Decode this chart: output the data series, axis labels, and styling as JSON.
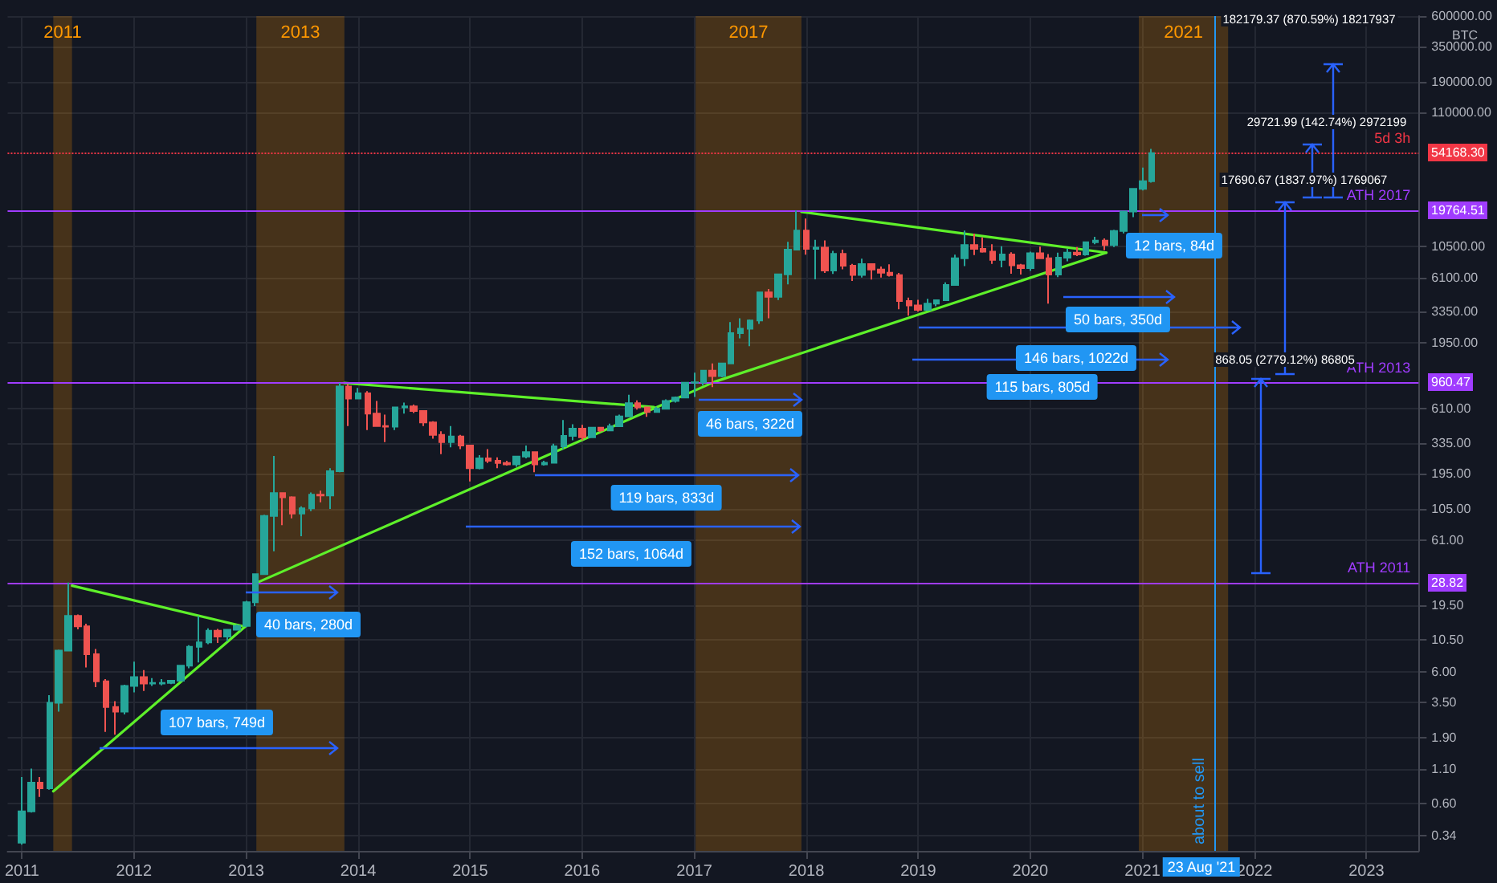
{
  "chart_data": {
    "type": "candlestick",
    "ylabel": "BTC",
    "x": [
      "2011-01",
      "2011-02",
      "2011-03",
      "2011-04",
      "2011-05",
      "2011-06",
      "2011-07",
      "2011-08",
      "2011-09",
      "2011-10",
      "2011-11",
      "2011-12",
      "2012-01",
      "2012-02",
      "2012-03",
      "2012-04",
      "2012-05",
      "2012-06",
      "2012-07",
      "2012-08",
      "2012-09",
      "2012-10",
      "2012-11",
      "2012-12",
      "2013-01",
      "2013-02",
      "2013-03",
      "2013-04",
      "2013-05",
      "2013-06",
      "2013-07",
      "2013-08",
      "2013-09",
      "2013-10",
      "2013-11",
      "2013-12",
      "2014-01",
      "2014-02",
      "2014-03",
      "2014-04",
      "2014-05",
      "2014-06",
      "2014-07",
      "2014-08",
      "2014-09",
      "2014-10",
      "2014-11",
      "2014-12",
      "2015-01",
      "2015-02",
      "2015-03",
      "2015-04",
      "2015-05",
      "2015-06",
      "2015-07",
      "2015-08",
      "2015-09",
      "2015-10",
      "2015-11",
      "2015-12",
      "2016-01",
      "2016-02",
      "2016-03",
      "2016-04",
      "2016-05",
      "2016-06",
      "2016-07",
      "2016-08",
      "2016-09",
      "2016-10",
      "2016-11",
      "2016-12",
      "2017-01",
      "2017-02",
      "2017-03",
      "2017-04",
      "2017-05",
      "2017-06",
      "2017-07",
      "2017-08",
      "2017-09",
      "2017-10",
      "2017-11",
      "2017-12",
      "2018-01",
      "2018-02",
      "2018-03",
      "2018-04",
      "2018-05",
      "2018-06",
      "2018-07",
      "2018-08",
      "2018-09",
      "2018-10",
      "2018-11",
      "2018-12",
      "2019-01",
      "2019-02",
      "2019-03",
      "2019-04",
      "2019-05",
      "2019-06",
      "2019-07",
      "2019-08",
      "2019-09",
      "2019-10",
      "2019-11",
      "2019-12",
      "2020-01",
      "2020-02",
      "2020-03",
      "2020-04",
      "2020-05",
      "2020-06",
      "2020-07",
      "2020-08",
      "2020-09",
      "2020-10",
      "2020-11",
      "2020-12",
      "2021-01",
      "2021-02"
    ],
    "ohlc": [
      [
        0.3,
        0.95,
        0.29,
        0.52
      ],
      [
        0.52,
        1.1,
        0.51,
        0.86
      ],
      [
        0.86,
        0.95,
        0.67,
        0.78
      ],
      [
        0.78,
        4.0,
        0.76,
        3.5
      ],
      [
        3.5,
        8.9,
        3.0,
        8.74
      ],
      [
        8.74,
        28.82,
        8.7,
        16.1
      ],
      [
        16.1,
        16.5,
        12.7,
        13.4
      ],
      [
        13.4,
        14.0,
        6.5,
        8.2
      ],
      [
        8.2,
        9.0,
        4.6,
        5.1
      ],
      [
        5.1,
        5.3,
        2.1,
        3.25
      ],
      [
        3.25,
        3.6,
        2.0,
        3.0
      ],
      [
        3.0,
        4.8,
        2.85,
        4.7
      ],
      [
        4.7,
        7.2,
        4.2,
        5.5
      ],
      [
        5.5,
        6.2,
        4.3,
        4.9
      ],
      [
        4.9,
        5.4,
        4.7,
        4.95
      ],
      [
        4.9,
        5.3,
        4.75,
        4.95
      ],
      [
        4.95,
        5.2,
        4.85,
        5.15
      ],
      [
        5.15,
        6.7,
        5.1,
        6.7
      ],
      [
        6.7,
        9.6,
        6.4,
        9.35
      ],
      [
        9.35,
        16.0,
        7.1,
        10.1
      ],
      [
        10.1,
        12.9,
        9.8,
        12.4
      ],
      [
        12.4,
        12.8,
        10.0,
        11.2
      ],
      [
        11.2,
        12.7,
        10.3,
        12.6
      ],
      [
        12.6,
        13.8,
        12.5,
        13.5
      ],
      [
        13.5,
        20.9,
        13.2,
        20.4
      ],
      [
        20.4,
        33.4,
        19.1,
        33.4
      ],
      [
        33.4,
        95,
        33,
        93
      ],
      [
        93,
        266,
        50,
        139
      ],
      [
        139,
        140,
        79,
        129
      ],
      [
        129,
        131,
        89,
        97
      ],
      [
        97,
        110,
        65,
        106
      ],
      [
        106,
        140,
        101,
        135
      ],
      [
        135,
        145,
        118,
        133
      ],
      [
        133,
        215,
        105,
        204
      ],
      [
        204,
        960.47,
        200,
        900
      ],
      [
        900,
        940,
        450,
        730
      ],
      [
        730,
        880,
        730,
        800
      ],
      [
        800,
        830,
        420,
        560
      ],
      [
        560,
        700,
        450,
        450
      ],
      [
        450,
        550,
        340,
        445
      ],
      [
        445,
        630,
        420,
        625
      ],
      [
        625,
        680,
        560,
        635
      ],
      [
        635,
        655,
        565,
        585
      ],
      [
        585,
        595,
        450,
        480
      ],
      [
        480,
        490,
        360,
        385
      ],
      [
        385,
        410,
        275,
        340
      ],
      [
        340,
        450,
        310,
        375
      ],
      [
        375,
        385,
        300,
        320
      ],
      [
        320,
        320,
        170,
        215
      ],
      [
        215,
        270,
        210,
        255
      ],
      [
        255,
        300,
        235,
        245
      ],
      [
        245,
        260,
        215,
        235
      ],
      [
        235,
        245,
        225,
        230
      ],
      [
        230,
        265,
        220,
        263
      ],
      [
        263,
        320,
        255,
        285
      ],
      [
        285,
        285,
        200,
        230
      ],
      [
        230,
        245,
        225,
        236
      ],
      [
        236,
        330,
        235,
        315
      ],
      [
        315,
        500,
        300,
        378
      ],
      [
        378,
        465,
        350,
        430
      ],
      [
        430,
        460,
        350,
        370
      ],
      [
        370,
        440,
        365,
        437
      ],
      [
        437,
        440,
        405,
        416
      ],
      [
        416,
        470,
        415,
        448
      ],
      [
        448,
        550,
        445,
        532
      ],
      [
        532,
        780,
        525,
        673
      ],
      [
        673,
        705,
        600,
        624
      ],
      [
        624,
        626,
        530,
        575
      ],
      [
        575,
        630,
        570,
        609
      ],
      [
        609,
        720,
        605,
        700
      ],
      [
        700,
        755,
        680,
        742
      ],
      [
        742,
        975,
        740,
        963
      ],
      [
        963,
        1150,
        750,
        970
      ],
      [
        970,
        1200,
        915,
        1190
      ],
      [
        1190,
        1350,
        890,
        1080
      ],
      [
        1080,
        1350,
        1060,
        1350
      ],
      [
        1350,
        2790,
        1340,
        2300
      ],
      [
        2300,
        2980,
        2100,
        2480
      ],
      [
        2480,
        2920,
        1830,
        2870
      ],
      [
        2870,
        4750,
        2700,
        4700
      ],
      [
        4700,
        4980,
        2980,
        4340
      ],
      [
        4340,
        6450,
        4110,
        6450
      ],
      [
        6450,
        11400,
        5400,
        9950
      ],
      [
        9950,
        19764.51,
        9950,
        13900
      ],
      [
        13900,
        17200,
        9100,
        10100
      ],
      [
        10100,
        11800,
        5900,
        10300
      ],
      [
        10300,
        11700,
        6600,
        6900
      ],
      [
        6900,
        9750,
        6500,
        9240
      ],
      [
        9240,
        9950,
        7050,
        7500
      ],
      [
        7500,
        7750,
        5750,
        6390
      ],
      [
        6390,
        8500,
        6100,
        7730
      ],
      [
        7730,
        7750,
        5880,
        7030
      ],
      [
        7030,
        7400,
        6100,
        6630
      ],
      [
        6630,
        7680,
        6200,
        6370
      ],
      [
        6370,
        6600,
        3500,
        4040
      ],
      [
        4040,
        4280,
        3120,
        3740
      ],
      [
        3740,
        4120,
        3350,
        3460
      ],
      [
        3460,
        4200,
        3400,
        3850
      ],
      [
        3850,
        4130,
        3690,
        4100
      ],
      [
        4100,
        5600,
        4050,
        5350
      ],
      [
        5350,
        9100,
        5320,
        8550
      ],
      [
        8550,
        13900,
        7450,
        10800
      ],
      [
        10800,
        13200,
        9050,
        10100
      ],
      [
        10100,
        12350,
        9450,
        9600
      ],
      [
        9600,
        10950,
        7750,
        8300
      ],
      [
        8300,
        10550,
        7300,
        9150
      ],
      [
        9150,
        9500,
        6520,
        7550
      ],
      [
        7550,
        7750,
        6430,
        7200
      ],
      [
        7200,
        9600,
        6850,
        9350
      ],
      [
        9350,
        10500,
        8450,
        8550
      ],
      [
        8550,
        9200,
        3850,
        6420
      ],
      [
        6420,
        9450,
        6150,
        8630
      ],
      [
        8630,
        10080,
        8100,
        9450
      ],
      [
        9450,
        10400,
        8900,
        9140
      ],
      [
        9140,
        11450,
        8950,
        11350
      ],
      [
        11350,
        12480,
        10950,
        11650
      ],
      [
        11650,
        12100,
        9850,
        10780
      ],
      [
        10780,
        14100,
        10400,
        13800
      ],
      [
        13800,
        19500,
        13250,
        19400
      ],
      [
        19400,
        29300,
        17600,
        28950
      ],
      [
        28950,
        41950,
        28100,
        33100
      ],
      [
        33100,
        58350,
        32300,
        54168.3
      ]
    ],
    "series": [
      {
        "type": "line",
        "color": "#5ef02a",
        "x": [
          "2011-06-13",
          "2012-12-28"
        ],
        "values": [
          27.3,
          13.3
        ]
      },
      {
        "type": "line",
        "color": "#5ef02a",
        "x": [
          "2011-04-13",
          "2012-12-28"
        ],
        "values": [
          0.74,
          13.3
        ]
      },
      {
        "type": "line",
        "color": "#5ef02a",
        "x": [
          "2013-02-05",
          "2017-03-08",
          "2020-09-05"
        ],
        "values": [
          28.8,
          978,
          9430
        ]
      },
      {
        "type": "line",
        "color": "#5ef02a",
        "x": [
          "2013-11-17",
          "2016-08-22"
        ],
        "values": [
          957,
          627
        ]
      },
      {
        "type": "line",
        "color": "#5ef02a",
        "x": [
          "2017-12-16",
          "2020-09-05"
        ],
        "values": [
          19300,
          9430
        ]
      }
    ],
    "marker": "none",
    "xlim": [
      "2010-11-15",
      "2023-06-20"
    ],
    "xticks": [
      "2011",
      "2012",
      "2013",
      "2014",
      "2015",
      "2016",
      "2017",
      "2018",
      "2019",
      "2020",
      "2021",
      "2022",
      "2023"
    ],
    "ylim": [
      0.26,
      600000
    ],
    "yticks": [
      0.34,
      {
        "value": 0.6,
        "label": "0.60"
      },
      {
        "value": 1.1,
        "label": "1.10"
      },
      {
        "value": 1.9,
        "label": "1.90"
      },
      {
        "value": 3.5,
        "label": "3.50"
      },
      {
        "value": 6,
        "label": "6.00"
      },
      {
        "value": 10.5,
        "label": "10.50"
      },
      {
        "value": 19.5,
        "label": "19.50"
      },
      {
        "value": 61,
        "label": "61.00"
      },
      {
        "value": 105,
        "label": "105.00"
      },
      {
        "value": 195,
        "label": "195.00"
      },
      {
        "value": 335,
        "label": "335.00"
      },
      {
        "value": 610,
        "label": "610.00"
      },
      {
        "value": 1950,
        "label": "1950.00"
      },
      {
        "value": 3350,
        "label": "3350.00"
      },
      {
        "value": 6100,
        "label": "6100.00"
      },
      {
        "value": 10500,
        "label": "10500.00"
      },
      {
        "value": 110000,
        "label": "110000.00"
      },
      {
        "value": 190000,
        "label": "190000.00"
      },
      {
        "value": 350000,
        "label": "350000.00"
      },
      {
        "value": 600000,
        "label": "600000.00"
      }
    ],
    "log": "y",
    "grid": true,
    "ref_lines": [
      {
        "axis": "y",
        "value": 19764.51,
        "label": "ATH 2017",
        "color": "#a03cff"
      },
      {
        "axis": "y",
        "value": 960.47,
        "label": "ATH 2013",
        "color": "#a03cff"
      },
      {
        "axis": "y",
        "value": 28.82,
        "label": "ATH 2011",
        "color": "#a03cff"
      },
      {
        "axis": "y",
        "value": 54168.3,
        "label": "5d 3h",
        "color": "#f23645",
        "line_style": "dotted"
      },
      {
        "axis": "x",
        "value": "2021-08-23",
        "label": "about to sell",
        "color": "#2196f3"
      }
    ],
    "bands": [
      {
        "axis": "x",
        "from": "2011-04-13",
        "to": "2011-06-13",
        "label": "2011",
        "color": "#ff9800"
      },
      {
        "axis": "x",
        "from": "2013-02-03",
        "to": "2013-11-17",
        "label": "2013",
        "color": "#ff9800"
      },
      {
        "axis": "x",
        "from": "2017-01-05",
        "to": "2017-12-16",
        "label": "2017",
        "color": "#ff9800"
      },
      {
        "axis": "x",
        "from": "2020-12-20",
        "to": "2021-10-07",
        "label": "2021",
        "color": "#ff9800"
      }
    ],
    "annotations": [
      "107 bars, 749d",
      "40 bars, 280d",
      "119 bars, 833d",
      "152 bars, 1064d",
      "46 bars, 322d",
      "12 bars, 84d",
      "50 bars, 350d",
      "146 bars, 1022d",
      "115 bars, 805d",
      "868.05 (2779.12%) 86805",
      "17690.67 (1837.97%) 1769067",
      "29721.99 (142.74%) 2972199",
      "182179.37 (870.59%) 18217937",
      "23 Aug '21",
      "19764.51",
      "960.47",
      "28.82",
      "54168.30"
    ]
  }
}
